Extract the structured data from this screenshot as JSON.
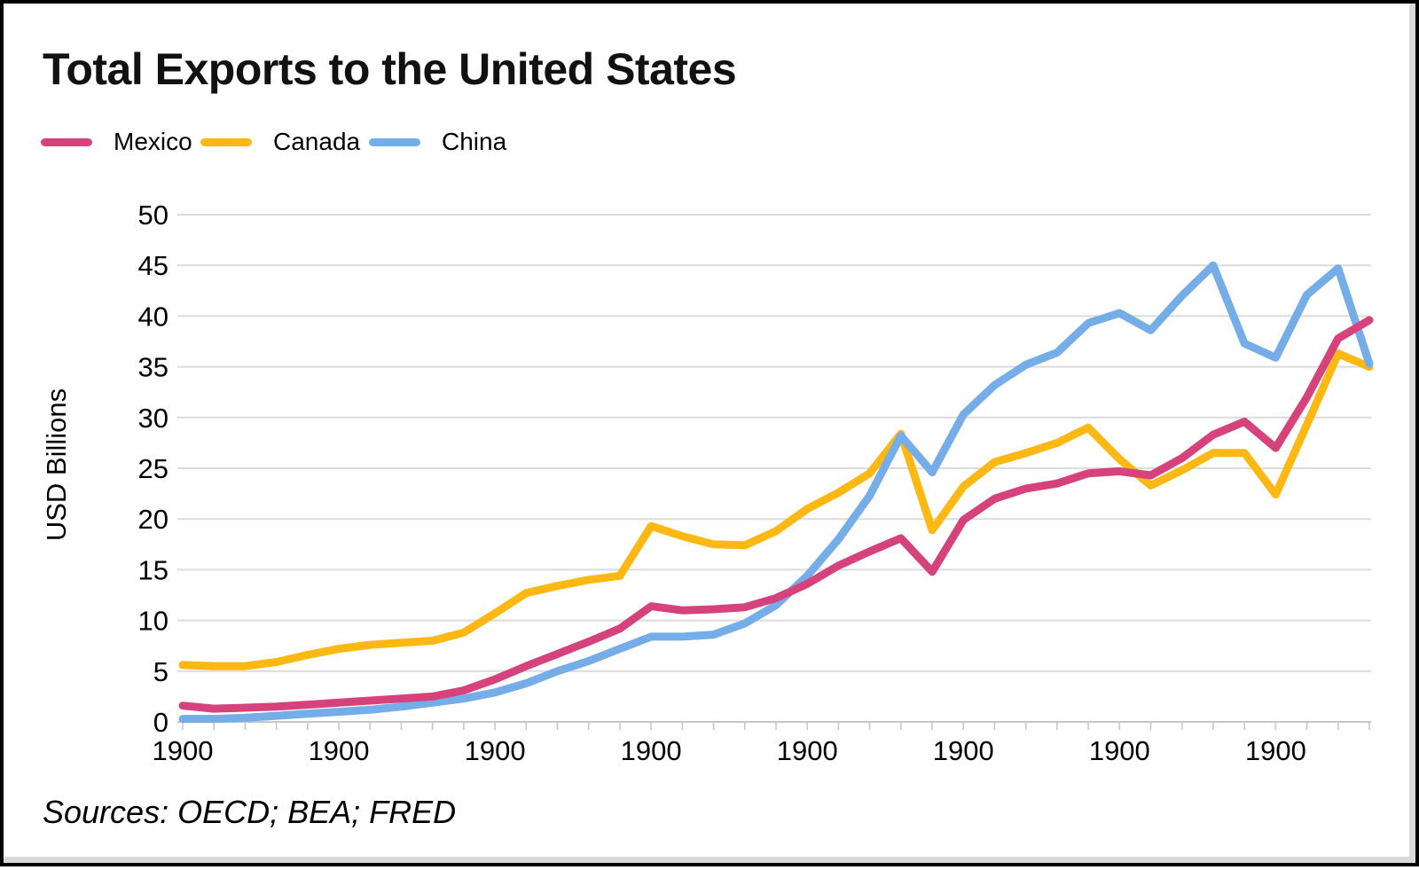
{
  "chart_data": {
    "type": "line",
    "title": "Total Exports to the United States",
    "ylabel": "USD Billions",
    "sources": "Sources: OECD; BEA; FRED",
    "ylim": [
      0,
      50
    ],
    "y_tick_step": 5,
    "y_tick_labels": [
      "0",
      "5",
      "10",
      "15",
      "20",
      "25",
      "30",
      "35",
      "40",
      "45",
      "50"
    ],
    "x_tick_labels": [
      "1900",
      "1900",
      "1900",
      "1900",
      "1900",
      "1900",
      "1900",
      "1900"
    ],
    "x_label_every": 5,
    "num_points": 39,
    "grid": "horizontal",
    "legend_position": "top-left",
    "series": [
      {
        "name": "Mexico",
        "color": "#D6437C",
        "values": [
          1.6,
          1.3,
          1.4,
          1.5,
          1.7,
          1.9,
          2.1,
          2.3,
          2.5,
          3.1,
          4.2,
          5.5,
          6.7,
          7.9,
          9.2,
          11.4,
          11.0,
          11.1,
          11.3,
          12.2,
          13.6,
          15.4,
          16.8,
          18.1,
          14.8,
          19.9,
          22.0,
          23.0,
          23.5,
          24.5,
          24.7,
          24.3,
          26.0,
          28.3,
          29.6,
          27.0,
          32.0,
          37.8,
          39.6
        ]
      },
      {
        "name": "Canada",
        "color": "#FDB813",
        "values": [
          5.6,
          5.5,
          5.5,
          5.9,
          6.6,
          7.2,
          7.6,
          7.8,
          8.0,
          8.8,
          10.7,
          12.7,
          13.4,
          14.0,
          14.4,
          19.3,
          18.3,
          17.5,
          17.4,
          18.8,
          21.0,
          22.6,
          24.5,
          28.4,
          18.9,
          23.2,
          25.6,
          26.5,
          27.5,
          29.0,
          25.9,
          23.3,
          24.8,
          26.5,
          26.5,
          22.4,
          29.3,
          36.3,
          35.0
        ]
      },
      {
        "name": "China",
        "color": "#74ADE8",
        "values": [
          0.3,
          0.3,
          0.4,
          0.6,
          0.8,
          1.0,
          1.2,
          1.5,
          1.9,
          2.3,
          2.9,
          3.8,
          5.0,
          6.0,
          7.2,
          8.4,
          8.4,
          8.6,
          9.7,
          11.5,
          14.4,
          18.0,
          22.3,
          28.2,
          24.6,
          30.3,
          33.2,
          35.2,
          36.4,
          39.3,
          40.3,
          38.6,
          42.0,
          45.0,
          37.3,
          35.9,
          42.1,
          44.7,
          35.3
        ]
      }
    ],
    "draw_order": [
      "Canada",
      "China",
      "Mexico"
    ],
    "colors": {
      "gridline": "#dcdcdc",
      "axis": "#c7c7c7",
      "text": "#000000"
    }
  }
}
